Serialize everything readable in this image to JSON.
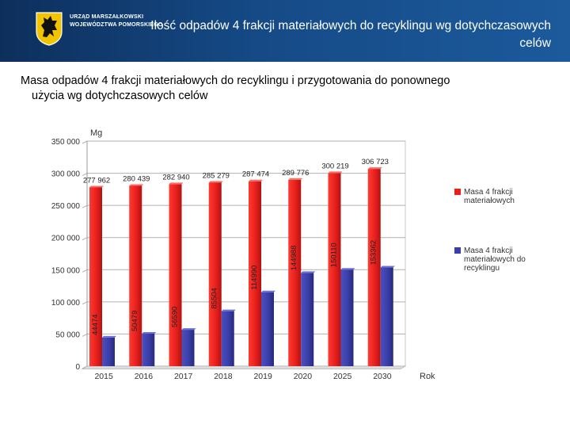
{
  "header": {
    "org_line1": "URZĄD MARSZAŁKOWSKI",
    "org_line2": "WOJEWÓDZTWA POMORSKIEGO",
    "title": "Ilość odpadów 4 frakcji materiałowych do recyklingu wg dotychczasowych celów",
    "logo_icon": "griffin-crest-icon"
  },
  "subtitle_line1": "Masa odpadów 4 frakcji materiałowych do recyklingu i przygotowania do ponownego",
  "subtitle_line2": "użycia wg dotychczasowych celów",
  "colors": {
    "header_bg": "#154a86",
    "series1": "#e8201d",
    "series2": "#3a3ea8"
  },
  "chart_data": {
    "type": "bar",
    "ylabel": "Mg",
    "xlabel": "Rok",
    "ylim": [
      0,
      350000
    ],
    "yticks": [
      "0",
      "50 000",
      "100 000",
      "150 000",
      "200 000",
      "250 000",
      "300 000",
      "350 000"
    ],
    "categories": [
      "2015",
      "2016",
      "2017",
      "2018",
      "2019",
      "2020",
      "2025",
      "2030"
    ],
    "grid": true,
    "legend_position": "right",
    "series": [
      {
        "name": "Masa 4 frakcji materiałowych",
        "values": [
          277962,
          280439,
          282940,
          285279,
          287474,
          289776,
          300219,
          306723
        ],
        "labels": [
          "277 962",
          "280 439",
          "282 940",
          "285 279",
          "287 474",
          "289 776",
          "300 219",
          "306 723"
        ]
      },
      {
        "name": "Masa 4 frakcji materiałowych do recyklingu",
        "values": [
          44474,
          50479,
          56590,
          85504,
          114990,
          144988,
          150110,
          153362
        ],
        "labels": [
          "44474",
          "50479",
          "56590",
          "85504",
          "114990",
          "144988",
          "150110",
          "153362"
        ]
      }
    ]
  }
}
